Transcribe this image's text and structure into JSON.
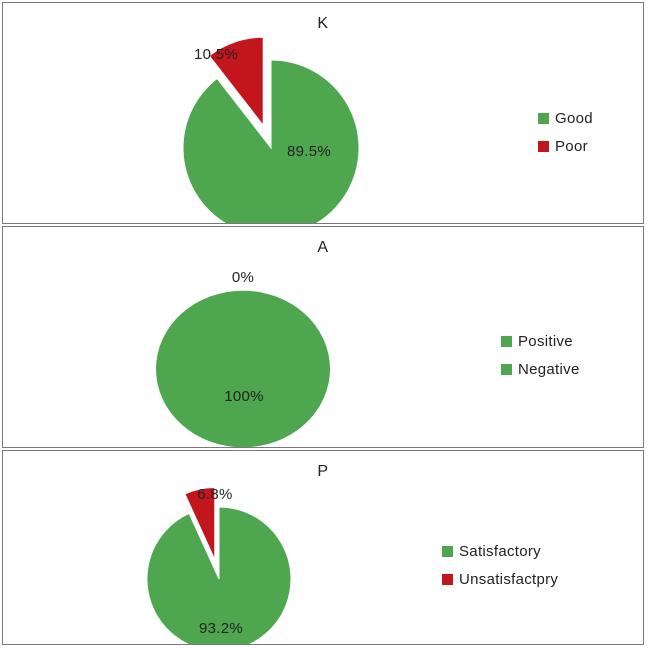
{
  "colors": {
    "green": "#4ea64f",
    "red": "#c3161c"
  },
  "chart_data": [
    {
      "type": "pie",
      "title": "K",
      "categories": [
        "Good",
        "Poor"
      ],
      "values": [
        89.5,
        10.5
      ],
      "data_labels": [
        "89.5%",
        "10.5%"
      ],
      "colors": [
        "#4ea64f",
        "#c3161c"
      ],
      "exploded": "Poor",
      "legend": {
        "position": "right",
        "entries": [
          "Good",
          "Poor"
        ]
      }
    },
    {
      "type": "pie",
      "title": "A",
      "categories": [
        "Positive",
        "Negative"
      ],
      "values": [
        100,
        0
      ],
      "data_labels": [
        "100%",
        "0%"
      ],
      "colors": [
        "#4ea64f",
        "#4ea64f"
      ],
      "legend": {
        "position": "right",
        "entries": [
          "Positive",
          "Negative"
        ]
      }
    },
    {
      "type": "pie",
      "title": "P",
      "categories": [
        "Satisfactory",
        "Unsatisfactpry"
      ],
      "values": [
        93.2,
        6.8
      ],
      "data_labels": [
        "93.2%",
        "6.8%"
      ],
      "colors": [
        "#4ea64f",
        "#c3161c"
      ],
      "exploded": "Unsatisfactpry",
      "legend": {
        "position": "right",
        "entries": [
          "Satisfactory",
          "Unsatisfactpry"
        ]
      }
    }
  ]
}
